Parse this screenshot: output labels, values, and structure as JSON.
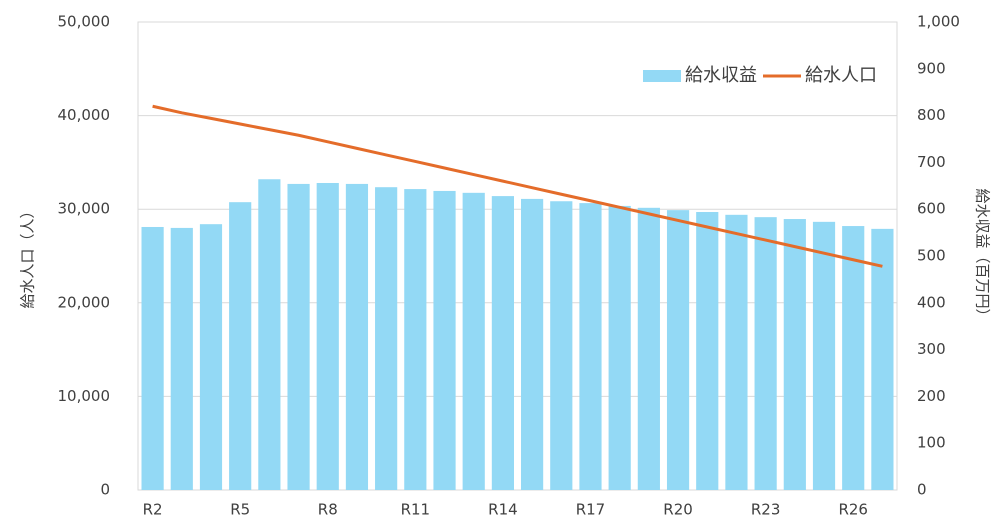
{
  "chart_data": {
    "type": "combo",
    "categories": [
      "R2",
      null,
      null,
      "R5",
      null,
      null,
      "R8",
      null,
      null,
      "R11",
      null,
      null,
      "R14",
      null,
      null,
      "R17",
      null,
      null,
      "R20",
      null,
      null,
      "R23",
      null,
      null,
      "R26",
      null
    ],
    "series": [
      {
        "name": "給水収益",
        "type": "bar",
        "axis": "y2",
        "color": "#93d9f5",
        "values": [
          562,
          560,
          568,
          615,
          664,
          654,
          656,
          654,
          647,
          643,
          639,
          635,
          628,
          622,
          617,
          613,
          607,
          603,
          598,
          594,
          588,
          583,
          579,
          573,
          564,
          558
        ]
      },
      {
        "name": "給水人口",
        "type": "line",
        "axis": "y",
        "color": "#e46c2a",
        "values": [
          41000,
          40300,
          39700,
          39100,
          38500,
          37900,
          37200,
          36500,
          35800,
          35100,
          34400,
          33700,
          33000,
          32300,
          31600,
          30900,
          30200,
          29500,
          28800,
          28100,
          27400,
          26700,
          26000,
          25300,
          24600,
          23900
        ]
      }
    ],
    "ylabel": "給水人口（人）",
    "y2label": "給水収益（百万円）",
    "ylim": [
      0,
      50000
    ],
    "yticks": [
      0,
      {
        "value": 10000,
        "label": "10,000"
      },
      {
        "value": 20000,
        "label": "20,000"
      },
      {
        "value": 30000,
        "label": "30,000"
      },
      {
        "value": 40000,
        "label": "40,000"
      },
      {
        "value": 50000,
        "label": "50,000"
      }
    ],
    "y2lim": [
      0,
      1000
    ],
    "y2ticks": [
      0,
      100,
      200,
      300,
      400,
      500,
      600,
      700,
      800,
      900,
      {
        "value": 1000,
        "label": "1,000"
      }
    ],
    "grid": true,
    "legend": "top-right"
  }
}
